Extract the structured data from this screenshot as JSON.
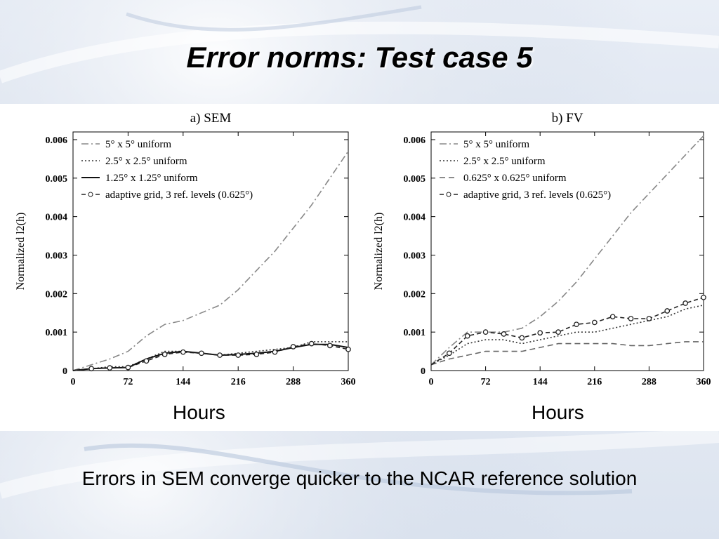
{
  "slide": {
    "title": "Error norms: Test case 5",
    "hours_left": "Hours",
    "hours_right": "Hours",
    "caption": "Errors in SEM converge quicker to the NCAR reference solution"
  },
  "chart_data": [
    {
      "type": "line",
      "title": "a) SEM",
      "xlabel": "",
      "ylabel": "Normalized l2(h)",
      "xlim": [
        0,
        360
      ],
      "ylim": [
        0,
        0.0062
      ],
      "xticks": [
        "0",
        "72",
        "144",
        "216",
        "288",
        "360"
      ],
      "xtick_values": [
        0,
        72,
        144,
        216,
        288,
        360
      ],
      "yticks": [
        "0",
        "0.001",
        "0.002",
        "0.003",
        "0.004",
        "0.005",
        "0.006"
      ],
      "ytick_values": [
        0,
        0.001,
        0.002,
        0.003,
        0.004,
        0.005,
        0.006
      ],
      "legend_position": "top-left",
      "series": [
        {
          "name": "5° x 5° uniform",
          "style": "dashdot",
          "color": "#888888",
          "x": [
            0,
            24,
            48,
            72,
            96,
            120,
            144,
            168,
            192,
            216,
            240,
            264,
            288,
            312,
            336,
            360
          ],
          "y": [
            0,
            0.00015,
            0.0003,
            0.0005,
            0.0009,
            0.0012,
            0.0013,
            0.0015,
            0.0017,
            0.0021,
            0.0026,
            0.0031,
            0.0037,
            0.0043,
            0.005,
            0.0057
          ]
        },
        {
          "name": "2.5° x 2.5° uniform",
          "style": "dotted",
          "color": "#333333",
          "x": [
            0,
            24,
            48,
            72,
            96,
            120,
            144,
            168,
            192,
            216,
            240,
            264,
            288,
            312,
            336,
            360
          ],
          "y": [
            0,
            5e-05,
            0.0001,
            0.0001,
            0.0003,
            0.0005,
            0.0005,
            0.00045,
            0.0004,
            0.00045,
            0.0005,
            0.00055,
            0.0006,
            0.00075,
            0.00075,
            0.00075
          ]
        },
        {
          "name": "1.25° x 1.25° uniform",
          "style": "solid",
          "color": "#111111",
          "x": [
            0,
            24,
            48,
            72,
            96,
            120,
            144,
            168,
            192,
            216,
            240,
            264,
            288,
            312,
            336,
            360
          ],
          "y": [
            0,
            5e-05,
            7e-05,
            8e-05,
            0.0003,
            0.00045,
            0.0005,
            0.00045,
            0.0004,
            0.00042,
            0.00045,
            0.0005,
            0.0006,
            0.00068,
            0.00068,
            0.0006
          ]
        },
        {
          "name": "adaptive grid, 3 ref. levels (0.625°)",
          "style": "dashed-circle",
          "color": "#222222",
          "x": [
            0,
            24,
            48,
            72,
            96,
            120,
            144,
            168,
            192,
            216,
            240,
            264,
            288,
            312,
            336,
            360
          ],
          "y": [
            0,
            5e-05,
            7e-05,
            8e-05,
            0.00025,
            0.00042,
            0.00048,
            0.00045,
            0.0004,
            0.0004,
            0.00042,
            0.00048,
            0.00062,
            0.0007,
            0.00065,
            0.00055
          ]
        }
      ]
    },
    {
      "type": "line",
      "title": "b) FV",
      "xlabel": "",
      "ylabel": "Normalized l2(h)",
      "xlim": [
        0,
        360
      ],
      "ylim": [
        0,
        0.0062
      ],
      "xticks": [
        "0",
        "72",
        "144",
        "216",
        "288",
        "360"
      ],
      "xtick_values": [
        0,
        72,
        144,
        216,
        288,
        360
      ],
      "yticks": [
        "0",
        "0.001",
        "0.002",
        "0.003",
        "0.004",
        "0.005",
        "0.006"
      ],
      "ytick_values": [
        0,
        0.001,
        0.002,
        0.003,
        0.004,
        0.005,
        0.006
      ],
      "legend_position": "top-left",
      "series": [
        {
          "name": "5° x 5° uniform",
          "style": "dashdot",
          "color": "#888888",
          "x": [
            0,
            24,
            48,
            72,
            96,
            120,
            144,
            168,
            192,
            216,
            240,
            264,
            288,
            312,
            336,
            360
          ],
          "y": [
            0.00015,
            0.0006,
            0.001,
            0.001,
            0.001,
            0.0011,
            0.0014,
            0.0018,
            0.0023,
            0.0029,
            0.0035,
            0.0041,
            0.0046,
            0.0051,
            0.0056,
            0.0061
          ]
        },
        {
          "name": "2.5° x 2.5° uniform",
          "style": "dotted",
          "color": "#333333",
          "x": [
            0,
            24,
            48,
            72,
            96,
            120,
            144,
            168,
            192,
            216,
            240,
            264,
            288,
            312,
            336,
            360
          ],
          "y": [
            0.00015,
            0.0004,
            0.0007,
            0.0008,
            0.0008,
            0.0007,
            0.0008,
            0.0009,
            0.001,
            0.001,
            0.0011,
            0.0012,
            0.0013,
            0.0014,
            0.0016,
            0.0017
          ]
        },
        {
          "name": "0.625° x 0.625° uniform",
          "style": "dashed",
          "color": "#666666",
          "x": [
            0,
            24,
            48,
            72,
            96,
            120,
            144,
            168,
            192,
            216,
            240,
            264,
            288,
            312,
            336,
            360
          ],
          "y": [
            0.00015,
            0.0003,
            0.0004,
            0.0005,
            0.0005,
            0.0005,
            0.0006,
            0.0007,
            0.0007,
            0.0007,
            0.0007,
            0.00065,
            0.00065,
            0.0007,
            0.00075,
            0.00075
          ]
        },
        {
          "name": "adaptive grid, 3 ref. levels (0.625°)",
          "style": "dashed-circle",
          "color": "#222222",
          "x": [
            0,
            24,
            48,
            72,
            96,
            120,
            144,
            168,
            192,
            216,
            240,
            264,
            288,
            312,
            336,
            360
          ],
          "y": [
            0.00015,
            0.00045,
            0.0009,
            0.001,
            0.00095,
            0.00085,
            0.00098,
            0.001,
            0.0012,
            0.00125,
            0.0014,
            0.00135,
            0.00135,
            0.00155,
            0.00175,
            0.0019
          ]
        }
      ]
    }
  ]
}
